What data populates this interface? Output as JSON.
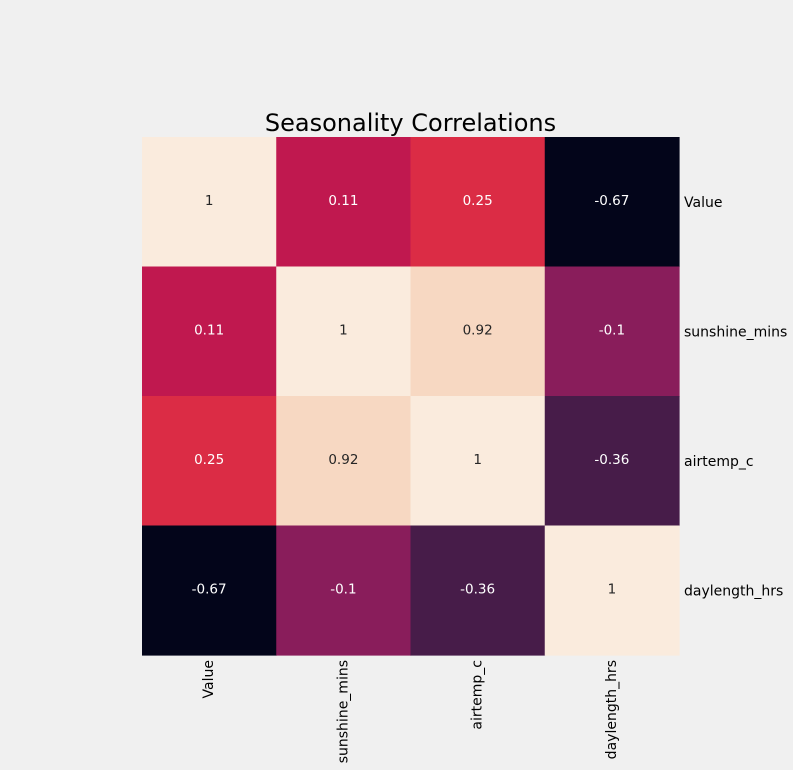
{
  "chart_data": {
    "type": "heatmap",
    "title": "Seasonality Correlations",
    "xlabel": "",
    "ylabel": "",
    "x_categories": [
      "Value",
      "sunshine_mins",
      "airtemp_c",
      "daylength_hrs"
    ],
    "y_categories": [
      "Value",
      "sunshine_mins",
      "airtemp_c",
      "daylength_hrs"
    ],
    "values": [
      [
        1,
        0.11,
        0.25,
        -0.67
      ],
      [
        0.11,
        1,
        0.92,
        -0.1
      ],
      [
        0.25,
        0.92,
        1,
        -0.36
      ],
      [
        -0.67,
        -0.1,
        -0.36,
        1
      ]
    ],
    "colors": {
      "1": "#faebdd",
      "0.92": "#f7d8c2",
      "0.25": "#db2c45",
      "0.11": "#c0184f",
      "-0.1": "#891d5b",
      "-0.36": "#471c49",
      "-0.67": "#03051a"
    },
    "annotation_colors": {
      "light": "#ffffff",
      "dark": "#262626"
    },
    "annotations": true,
    "colorbar": false,
    "grid": false
  }
}
